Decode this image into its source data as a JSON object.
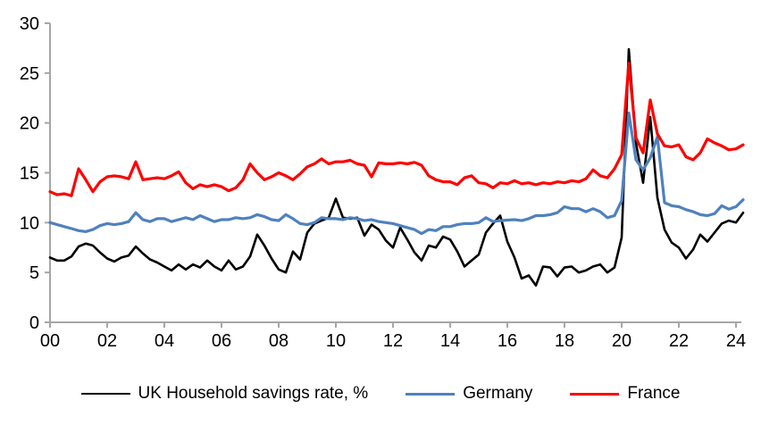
{
  "chart_data": {
    "type": "line",
    "title": "",
    "x_start_year": 2000,
    "frequency": "quarterly",
    "x_tick_labels": [
      "00",
      "02",
      "04",
      "06",
      "08",
      "10",
      "12",
      "14",
      "16",
      "18",
      "20",
      "22",
      "24"
    ],
    "x_tick_step_years": 2,
    "y_ticks": [
      0,
      5,
      10,
      15,
      20,
      25,
      30
    ],
    "ylim": [
      0,
      30
    ],
    "grid": false,
    "legend_position": "bottom",
    "axis_color": "#a6a6a6",
    "series": [
      {
        "name": "UK Household savings rate, %",
        "color": "#000000",
        "stroke_width": 2.6,
        "values": [
          6.5,
          6.2,
          6.2,
          6.6,
          7.6,
          7.9,
          7.7,
          7.0,
          6.4,
          6.1,
          6.5,
          6.7,
          7.6,
          6.9,
          6.3,
          6.0,
          5.6,
          5.2,
          5.8,
          5.3,
          5.8,
          5.5,
          6.2,
          5.6,
          5.2,
          6.2,
          5.3,
          5.6,
          6.6,
          8.8,
          7.7,
          6.4,
          5.3,
          5.0,
          7.1,
          6.3,
          9.0,
          9.9,
          10.2,
          10.5,
          12.4,
          10.5,
          10.4,
          10.5,
          8.7,
          9.8,
          9.3,
          8.2,
          7.5,
          9.5,
          8.3,
          7.0,
          6.2,
          7.7,
          7.5,
          8.6,
          8.3,
          7.1,
          5.6,
          6.2,
          6.8,
          9.0,
          9.9,
          10.7,
          8.1,
          6.5,
          4.4,
          4.7,
          3.7,
          5.6,
          5.5,
          4.6,
          5.5,
          5.6,
          5.0,
          5.2,
          5.6,
          5.8,
          5.0,
          5.5,
          8.5,
          27.4,
          18.0,
          14.0,
          20.6,
          12.5,
          9.3,
          8.0,
          7.5,
          6.4,
          7.3,
          8.8,
          8.1,
          9.0,
          9.9,
          10.2,
          10.0,
          11.0
        ]
      },
      {
        "name": "Germany",
        "color": "#4f81bd",
        "stroke_width": 3.2,
        "values": [
          10.0,
          9.8,
          9.6,
          9.4,
          9.2,
          9.1,
          9.3,
          9.7,
          9.9,
          9.8,
          9.9,
          10.1,
          11.0,
          10.3,
          10.1,
          10.4,
          10.4,
          10.1,
          10.3,
          10.5,
          10.3,
          10.7,
          10.4,
          10.1,
          10.3,
          10.3,
          10.5,
          10.4,
          10.5,
          10.8,
          10.6,
          10.3,
          10.2,
          10.8,
          10.4,
          9.9,
          9.8,
          10.0,
          10.5,
          10.4,
          10.4,
          10.3,
          10.5,
          10.4,
          10.2,
          10.3,
          10.1,
          10.0,
          9.9,
          9.7,
          9.5,
          9.3,
          8.9,
          9.3,
          9.2,
          9.6,
          9.6,
          9.8,
          9.9,
          9.9,
          10.0,
          10.5,
          10.1,
          10.2,
          10.25,
          10.3,
          10.2,
          10.4,
          10.7,
          10.7,
          10.8,
          11.0,
          11.6,
          11.4,
          11.4,
          11.1,
          11.4,
          11.1,
          10.5,
          10.7,
          12.2,
          21.0,
          16.3,
          15.3,
          16.5,
          18.6,
          12.0,
          11.7,
          11.6,
          11.3,
          11.1,
          10.8,
          10.7,
          10.9,
          11.7,
          11.35,
          11.6,
          12.3
        ]
      },
      {
        "name": "France",
        "color": "#ff0000",
        "stroke_width": 3.2,
        "values": [
          13.1,
          12.8,
          12.9,
          12.7,
          15.4,
          14.3,
          13.1,
          14.1,
          14.6,
          14.7,
          14.6,
          14.4,
          16.1,
          14.3,
          14.4,
          14.5,
          14.4,
          14.7,
          15.1,
          14.0,
          13.4,
          13.8,
          13.6,
          13.8,
          13.6,
          13.2,
          13.5,
          14.3,
          15.9,
          15.0,
          14.3,
          14.6,
          15.0,
          14.7,
          14.3,
          14.9,
          15.6,
          15.9,
          16.4,
          15.9,
          16.1,
          16.1,
          16.25,
          15.9,
          15.75,
          14.6,
          16.0,
          15.9,
          15.9,
          16.0,
          15.9,
          16.05,
          15.75,
          14.7,
          14.3,
          14.1,
          14.1,
          13.8,
          14.5,
          14.7,
          14.0,
          13.9,
          13.5,
          14.0,
          13.9,
          14.2,
          13.9,
          14.0,
          13.8,
          14.0,
          13.9,
          14.1,
          14.0,
          14.2,
          14.1,
          14.4,
          15.3,
          14.7,
          14.5,
          15.4,
          16.8,
          26.0,
          18.5,
          17.0,
          22.3,
          18.9,
          17.7,
          17.6,
          17.8,
          16.6,
          16.3,
          17.0,
          18.4,
          18.0,
          17.7,
          17.3,
          17.4,
          17.8
        ]
      }
    ]
  },
  "legend": {
    "items": [
      {
        "label": "UK Household savings rate, %",
        "color": "#000000"
      },
      {
        "label": "Germany",
        "color": "#4f81bd"
      },
      {
        "label": "France",
        "color": "#ff0000"
      }
    ]
  }
}
